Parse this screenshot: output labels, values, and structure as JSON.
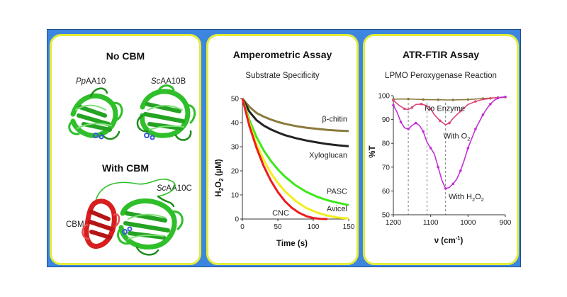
{
  "panels": {
    "structure": {
      "title_top": "No CBM",
      "title_bottom": "With CBM",
      "labels": {
        "pp_prefix": "Pp",
        "pp_suffix": "AA10",
        "sc_b_prefix": "Sc",
        "sc_b_suffix": "AA10B",
        "sc_c_prefix": "Sc",
        "sc_c_suffix": "AA10C",
        "cbm": "CBM"
      },
      "colors": {
        "protein": "#2fbf2a",
        "cbm": "#d81e1e",
        "ligand": "#3b5bd6"
      }
    },
    "amperometric": {
      "title": "Amperometric Assay",
      "subtitle": "Substrate Specificity",
      "ylabel_main": "H",
      "ylabel_sub": "2",
      "ylabel_o": "O",
      "ylabel_sub2": "2",
      "ylabel_unit": "  (µM)",
      "xlabel": "Time (s)"
    },
    "ftir": {
      "title": "ATR-FTIR Assay",
      "subtitle": "LPMO Peroxygenase Reaction",
      "ylabel": "%T",
      "xlabel_main": "ν (cm",
      "xlabel_sup": "-1",
      "xlabel_end": ")"
    }
  },
  "chart_data": [
    {
      "type": "line",
      "title": "Substrate Specificity",
      "xlabel": "Time (s)",
      "ylabel": "H2O2 (µM)",
      "xlim": [
        0,
        150
      ],
      "ylim": [
        0,
        50
      ],
      "xticks": [
        0,
        50,
        100,
        150
      ],
      "yticks": [
        0,
        10,
        20,
        30,
        40,
        50
      ],
      "series": [
        {
          "name": "β-chitin",
          "color": "#8a7a3e",
          "x": [
            0,
            10,
            20,
            30,
            40,
            50,
            60,
            75,
            90,
            105,
            120,
            135,
            150
          ],
          "y": [
            50,
            46.5,
            44,
            42.5,
            41.3,
            40.3,
            39.5,
            38.6,
            37.9,
            37.4,
            37.0,
            36.7,
            36.5
          ]
        },
        {
          "name": "Xyloglucan",
          "color": "#222222",
          "x": [
            0,
            10,
            20,
            30,
            40,
            50,
            60,
            75,
            90,
            105,
            120,
            135,
            150
          ],
          "y": [
            50,
            44.5,
            41,
            38.8,
            37.2,
            35.9,
            34.8,
            33.6,
            32.6,
            31.8,
            31.1,
            30.6,
            30.2
          ]
        },
        {
          "name": "PASC",
          "color": "#3ee81a",
          "x": [
            0,
            10,
            20,
            30,
            40,
            50,
            60,
            75,
            90,
            105,
            120,
            135,
            150
          ],
          "y": [
            50,
            41,
            34,
            28.5,
            24.2,
            20.6,
            17.6,
            14.0,
            11.3,
            9.3,
            7.8,
            6.7,
            5.8
          ]
        },
        {
          "name": "Avicel",
          "color": "#f2ee1e",
          "x": [
            0,
            10,
            20,
            30,
            40,
            50,
            60,
            75,
            90,
            105,
            120,
            135,
            150
          ],
          "y": [
            50,
            39.5,
            31,
            24.5,
            19.2,
            15.0,
            11.5,
            7.5,
            4.6,
            2.7,
            1.4,
            0.6,
            0.2
          ]
        },
        {
          "name": "CNC",
          "color": "#ee1c1c",
          "x": [
            0,
            10,
            20,
            30,
            40,
            50,
            60,
            70,
            80,
            90,
            100,
            110,
            120
          ],
          "y": [
            50,
            38.5,
            29.5,
            22.0,
            16.0,
            11.2,
            7.4,
            4.6,
            2.6,
            1.2,
            0.4,
            0.1,
            0
          ]
        }
      ]
    },
    {
      "type": "line",
      "title": "LPMO Peroxygenase Reaction",
      "xlabel": "ν (cm-1)",
      "ylabel": "%T",
      "xlim": [
        1200,
        900
      ],
      "ylim": [
        50,
        100
      ],
      "xticks": [
        1200,
        1100,
        1000,
        900
      ],
      "yticks": [
        50,
        60,
        70,
        80,
        90,
        100
      ],
      "reference_lines_x": [
        1160,
        1110,
        1060
      ],
      "series": [
        {
          "name": "No Enzyme",
          "color": "#8a7a3e",
          "x": [
            1200,
            1180,
            1160,
            1140,
            1120,
            1100,
            1080,
            1060,
            1040,
            1020,
            1000,
            980,
            960,
            940,
            920,
            900
          ],
          "y": [
            98.5,
            98.6,
            98.6,
            98.5,
            98.4,
            98.3,
            98.3,
            98.2,
            98.2,
            98.3,
            98.4,
            98.6,
            98.8,
            99.0,
            99.2,
            99.3
          ]
        },
        {
          "name": "With O2",
          "color": "#e0457a",
          "x": [
            1200,
            1185,
            1170,
            1160,
            1150,
            1140,
            1125,
            1110,
            1100,
            1090,
            1075,
            1060,
            1050,
            1040,
            1020,
            1000,
            980,
            960,
            940,
            920,
            900
          ],
          "y": [
            98,
            96,
            94.5,
            94.2,
            95,
            96.3,
            96.5,
            95.8,
            94.5,
            92,
            89.5,
            87.8,
            88.5,
            90.5,
            93.5,
            96.3,
            97.6,
            98.4,
            98.9,
            99.2,
            99.4
          ]
        },
        {
          "name": "With H2O2",
          "color": "#c22fd6",
          "x": [
            1200,
            1190,
            1180,
            1170,
            1160,
            1150,
            1140,
            1130,
            1120,
            1110,
            1100,
            1090,
            1080,
            1070,
            1060,
            1050,
            1040,
            1030,
            1020,
            1010,
            1000,
            990,
            980,
            970,
            960,
            950,
            940,
            930,
            920,
            910,
            900
          ],
          "y": [
            96,
            93,
            89,
            86.5,
            86,
            87.5,
            88.5,
            87.5,
            85,
            80.5,
            78,
            75.5,
            70,
            64.5,
            61,
            61.5,
            63,
            65,
            68.5,
            73,
            78,
            82,
            86,
            89,
            92,
            94.5,
            96.5,
            98,
            99,
            99.4,
            99.5
          ]
        }
      ]
    }
  ]
}
